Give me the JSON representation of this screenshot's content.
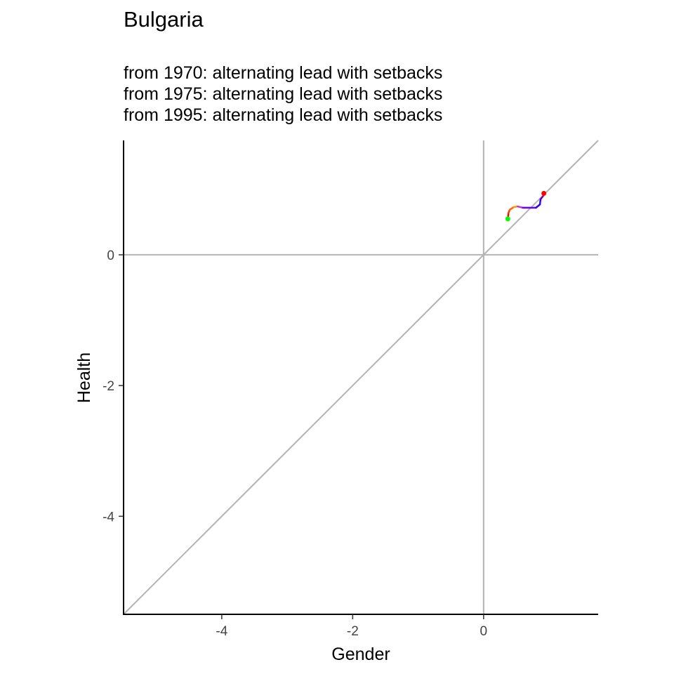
{
  "chart_data": {
    "type": "line",
    "title": "Bulgaria",
    "subtitle": [
      "from 1970:  alternating lead with setbacks",
      "from 1975:  alternating lead with setbacks",
      "from 1995:  alternating lead with setbacks"
    ],
    "xlabel": "Gender",
    "ylabel": "Health",
    "xlim": [
      -5.5,
      1.75
    ],
    "ylim": [
      -5.5,
      1.75
    ],
    "x_ticks": [
      -4,
      -2,
      0
    ],
    "y_ticks": [
      -4,
      -2,
      0
    ],
    "reference_lines": {
      "diagonal_color": "#b3b3b3",
      "zero_lines_color": "#b3b3b3"
    },
    "series": [
      {
        "points": [
          {
            "x": 0.37,
            "y": 0.55,
            "color": "#00ff00"
          },
          {
            "x": 0.38,
            "y": 0.64,
            "color": "#ff0000"
          },
          {
            "x": 0.4,
            "y": 0.69,
            "color": "#ff3300"
          },
          {
            "x": 0.46,
            "y": 0.73,
            "color": "#ff6600"
          },
          {
            "x": 0.52,
            "y": 0.74,
            "color": "#ff9900"
          },
          {
            "x": 0.6,
            "y": 0.72,
            "color": "#cc33cc"
          },
          {
            "x": 0.8,
            "y": 0.72,
            "color": "#6600ff"
          },
          {
            "x": 0.86,
            "y": 0.77,
            "color": "#3300ff"
          },
          {
            "x": 0.87,
            "y": 0.85,
            "color": "#3300ff"
          },
          {
            "x": 0.91,
            "y": 0.9,
            "color": "#6600cc"
          },
          {
            "x": 0.92,
            "y": 0.94,
            "color": "#ff0000"
          }
        ],
        "start_color": "#00ff00",
        "end_color": "#ff0000"
      }
    ]
  }
}
